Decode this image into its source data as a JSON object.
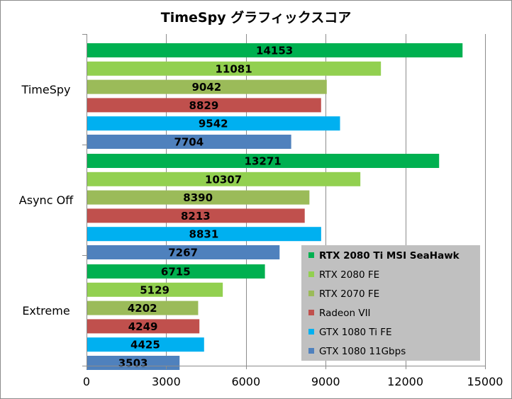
{
  "chart_data": {
    "type": "bar",
    "orientation": "horizontal",
    "title": "TimeSpy グラフィックスコア",
    "categories": [
      "TimeSpy",
      "Async Off",
      "Extreme"
    ],
    "series": [
      {
        "name": "RTX 2080 Ti MSI SeaHawk",
        "color": "#00b050",
        "values": [
          14153,
          13271,
          6715
        ]
      },
      {
        "name": "RTX 2080 FE",
        "color": "#92d050",
        "values": [
          11081,
          10307,
          5129
        ]
      },
      {
        "name": "RTX 2070 FE",
        "color": "#9bbb59",
        "values": [
          9042,
          8390,
          4202
        ]
      },
      {
        "name": "Radeon VII",
        "color": "#c0504d",
        "values": [
          8829,
          8213,
          4249
        ]
      },
      {
        "name": "GTX 1080 Ti FE",
        "color": "#00b0f0",
        "values": [
          9542,
          8831,
          4425
        ]
      },
      {
        "name": "GTX 1080 11Gbps",
        "color": "#4f81bd",
        "values": [
          7704,
          7267,
          3503
        ]
      }
    ],
    "xlim": [
      0,
      15000
    ],
    "xticks": [
      0,
      3000,
      6000,
      9000,
      12000,
      15000
    ],
    "grid": true,
    "legend": {
      "placement": "bottom-right",
      "background": "#c0c0c0"
    },
    "data_labels": true
  }
}
